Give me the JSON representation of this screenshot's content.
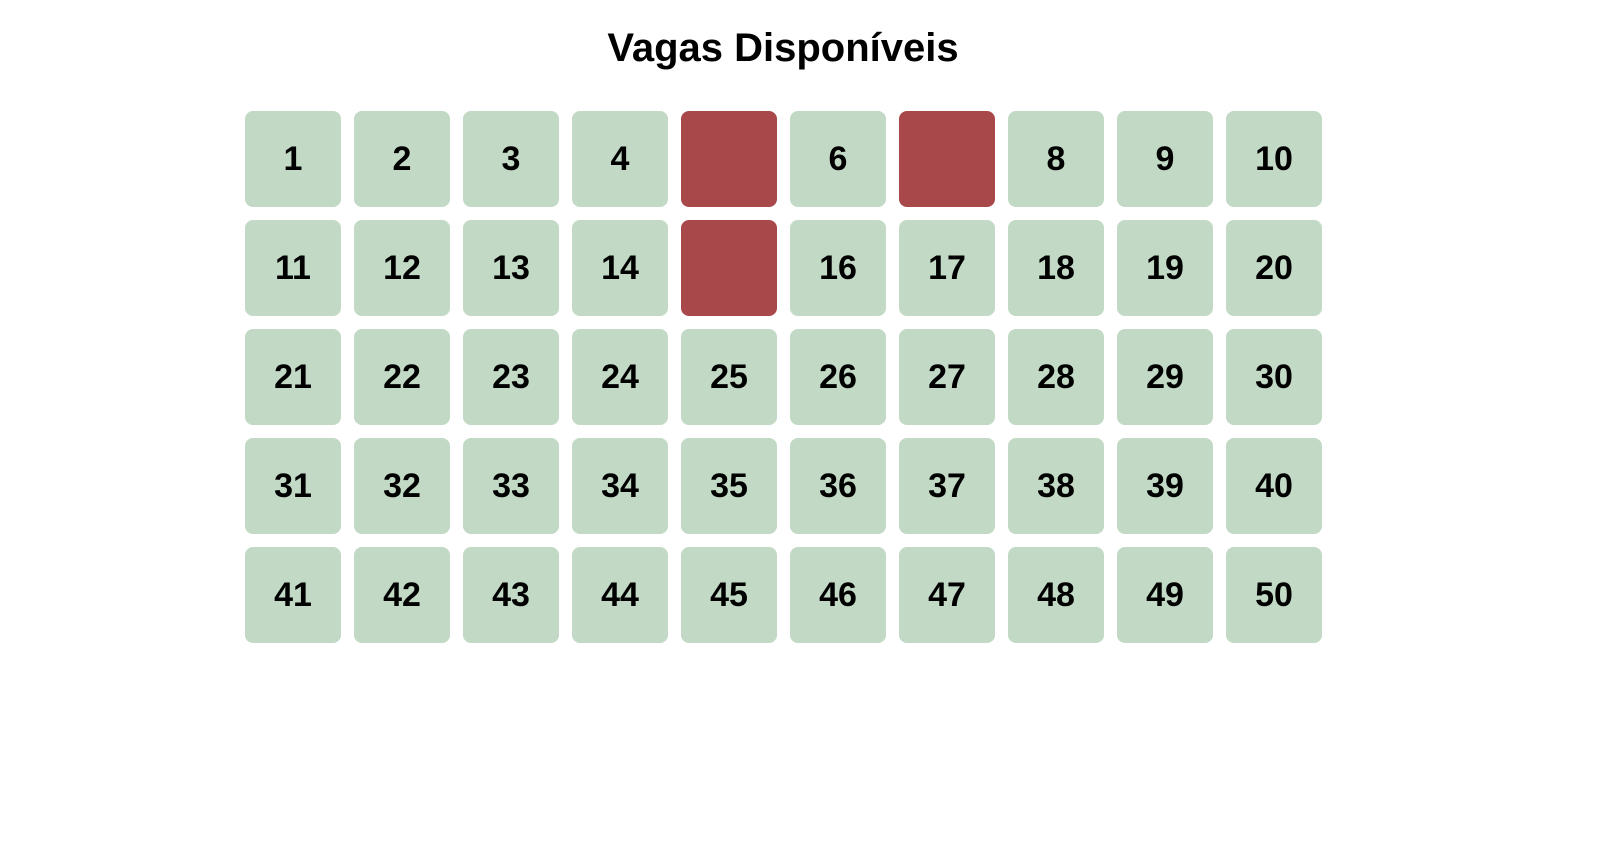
{
  "page": {
    "title": "Vagas Disponíveis"
  },
  "colors": {
    "available": "#c2d9c5",
    "occupied": "#a8484b",
    "text": "#000000"
  },
  "spots": [
    {
      "label": "1",
      "status": "available"
    },
    {
      "label": "2",
      "status": "available"
    },
    {
      "label": "3",
      "status": "available"
    },
    {
      "label": "4",
      "status": "available"
    },
    {
      "label": "",
      "status": "occupied"
    },
    {
      "label": "6",
      "status": "available"
    },
    {
      "label": "",
      "status": "occupied"
    },
    {
      "label": "8",
      "status": "available"
    },
    {
      "label": "9",
      "status": "available"
    },
    {
      "label": "10",
      "status": "available"
    },
    {
      "label": "11",
      "status": "available"
    },
    {
      "label": "12",
      "status": "available"
    },
    {
      "label": "13",
      "status": "available"
    },
    {
      "label": "14",
      "status": "available"
    },
    {
      "label": "",
      "status": "occupied"
    },
    {
      "label": "16",
      "status": "available"
    },
    {
      "label": "17",
      "status": "available"
    },
    {
      "label": "18",
      "status": "available"
    },
    {
      "label": "19",
      "status": "available"
    },
    {
      "label": "20",
      "status": "available"
    },
    {
      "label": "21",
      "status": "available"
    },
    {
      "label": "22",
      "status": "available"
    },
    {
      "label": "23",
      "status": "available"
    },
    {
      "label": "24",
      "status": "available"
    },
    {
      "label": "25",
      "status": "available"
    },
    {
      "label": "26",
      "status": "available"
    },
    {
      "label": "27",
      "status": "available"
    },
    {
      "label": "28",
      "status": "available"
    },
    {
      "label": "29",
      "status": "available"
    },
    {
      "label": "30",
      "status": "available"
    },
    {
      "label": "31",
      "status": "available"
    },
    {
      "label": "32",
      "status": "available"
    },
    {
      "label": "33",
      "status": "available"
    },
    {
      "label": "34",
      "status": "available"
    },
    {
      "label": "35",
      "status": "available"
    },
    {
      "label": "36",
      "status": "available"
    },
    {
      "label": "37",
      "status": "available"
    },
    {
      "label": "38",
      "status": "available"
    },
    {
      "label": "39",
      "status": "available"
    },
    {
      "label": "40",
      "status": "available"
    },
    {
      "label": "41",
      "status": "available"
    },
    {
      "label": "42",
      "status": "available"
    },
    {
      "label": "43",
      "status": "available"
    },
    {
      "label": "44",
      "status": "available"
    },
    {
      "label": "45",
      "status": "available"
    },
    {
      "label": "46",
      "status": "available"
    },
    {
      "label": "47",
      "status": "available"
    },
    {
      "label": "48",
      "status": "available"
    },
    {
      "label": "49",
      "status": "available"
    },
    {
      "label": "50",
      "status": "available"
    }
  ]
}
